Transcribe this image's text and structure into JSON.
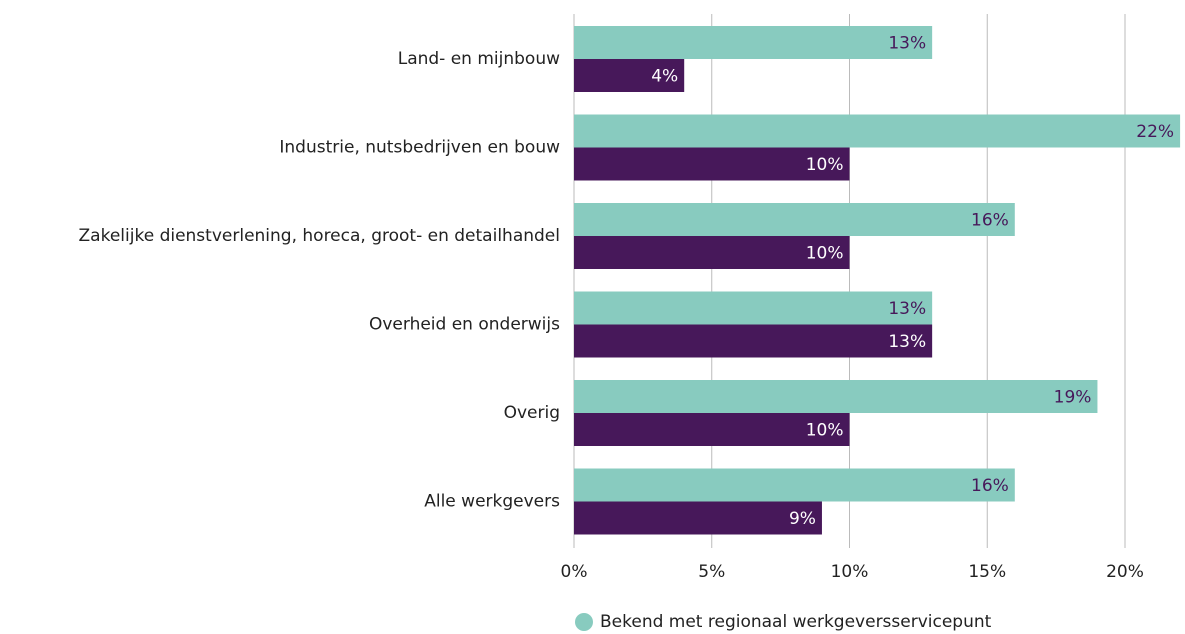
{
  "chart_data": {
    "type": "bar",
    "orientation": "horizontal",
    "categories": [
      "Land- en mijnbouw",
      "Industrie, nutsbedrijven en bouw",
      "Zakelijke dienstverlening, horeca, groot- en detailhandel",
      "Overheid en onderwijs",
      "Overig",
      "Alle werkgevers"
    ],
    "series": [
      {
        "name": "Bekend met regionaal werkgeversservicepunt",
        "color": "#88cbbf",
        "values": [
          13,
          22,
          16,
          13,
          19,
          16
        ],
        "value_labels": [
          "13%",
          "22%",
          "16%",
          "13%",
          "19%",
          "16%"
        ]
      },
      {
        "color": "#47185a",
        "values": [
          4,
          10,
          10,
          13,
          10,
          9
        ],
        "value_labels": [
          "4%",
          "10%",
          "10%",
          "13%",
          "10%",
          "9%"
        ]
      }
    ],
    "xlim": [
      0,
      25
    ],
    "xticks": [
      {
        "value": 0,
        "label": "0%"
      },
      {
        "value": 5,
        "label": "5%"
      },
      {
        "value": 10,
        "label": "10%"
      },
      {
        "value": 15,
        "label": "15%"
      },
      {
        "value": 20,
        "label": "20%"
      }
    ],
    "grid": true
  }
}
